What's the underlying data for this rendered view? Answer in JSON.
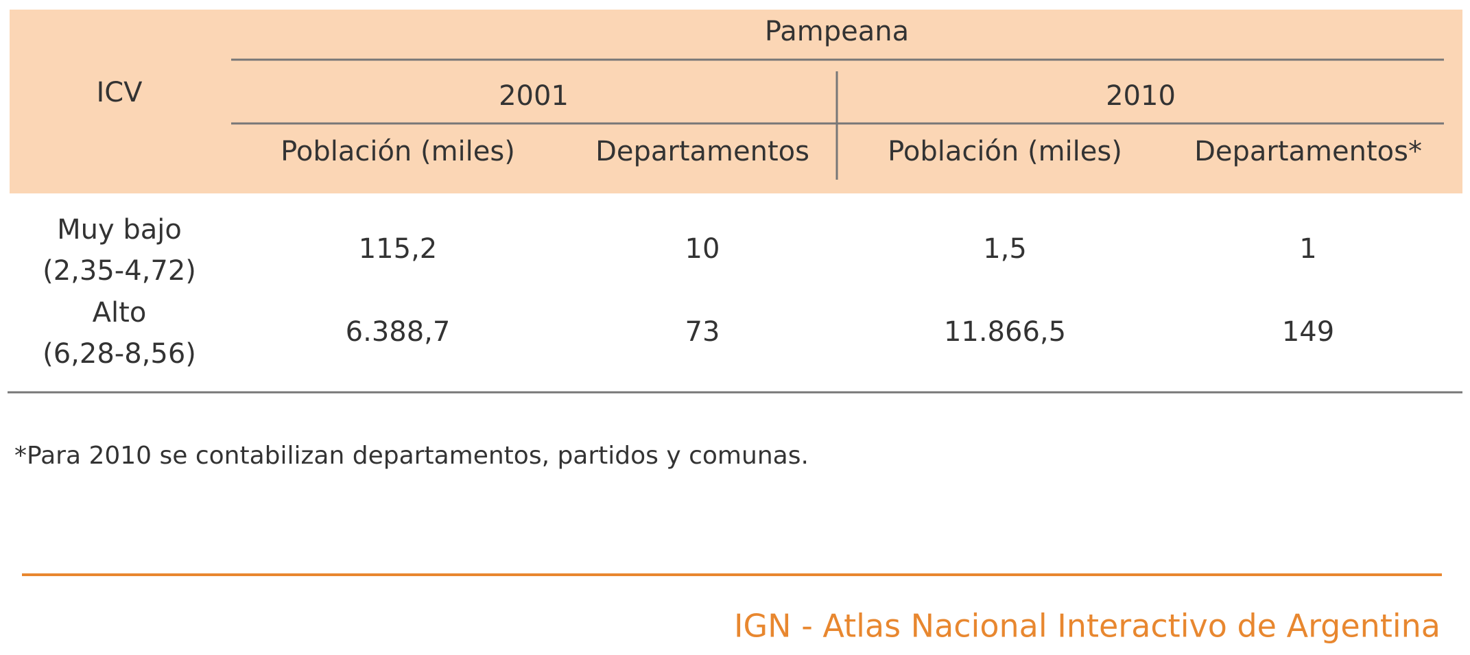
{
  "table": {
    "stub_header": "ICV",
    "region": "Pampeana",
    "years": [
      "2001",
      "2010"
    ],
    "columns": [
      "Población (miles)",
      "Departamentos",
      "Población (miles)",
      "Departamentos*"
    ],
    "rows": [
      {
        "label": "Muy bajo",
        "range": "(2,35-4,72)",
        "cells": [
          "115,2",
          "10",
          "1,5",
          "1"
        ]
      },
      {
        "label": "Alto",
        "range": "(6,28-8,56)",
        "cells": [
          "6.388,7",
          "73",
          "11.866,5",
          "149"
        ]
      }
    ]
  },
  "footnote": "*Para 2010 se contabilizan departamentos, partidos y comunas.",
  "footer": "IGN - Atlas Nacional Interactivo de Argentina"
}
